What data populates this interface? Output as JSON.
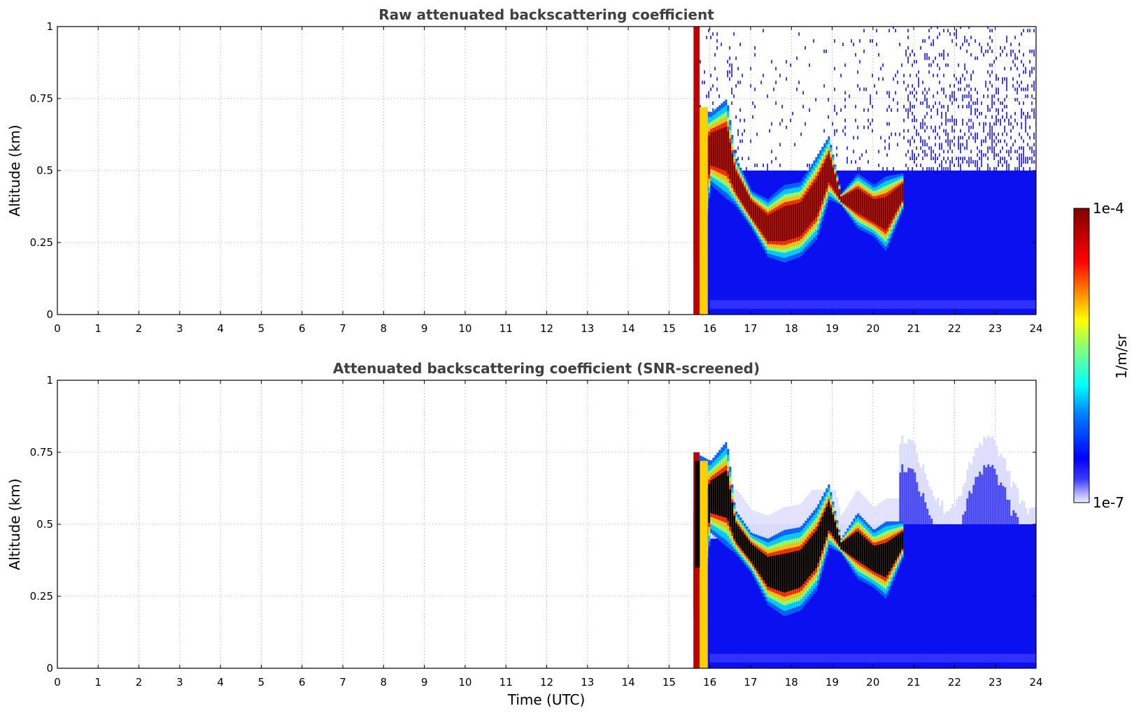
{
  "chart_data": [
    {
      "type": "heatmap",
      "title": "Raw attenuated backscattering coefficient",
      "xlabel": "",
      "ylabel": "Altitude (km)",
      "xlim": [
        0,
        24
      ],
      "ylim": [
        0,
        1
      ],
      "x_ticks": [
        "0",
        "1",
        "2",
        "3",
        "4",
        "5",
        "6",
        "7",
        "8",
        "9",
        "10",
        "11",
        "12",
        "13",
        "14",
        "15",
        "16",
        "17",
        "18",
        "19",
        "20",
        "21",
        "22",
        "23",
        "24"
      ],
      "y_ticks": [
        "0",
        "0.25",
        "0.5",
        "0.75",
        "1"
      ],
      "y_tick_values": [
        0,
        0.25,
        0.5,
        0.75,
        1
      ],
      "grid": true,
      "data_start_hour": 15.6,
      "cloud_top_profile": {
        "time": [
          15.6,
          16.0,
          16.4,
          16.6,
          17.0,
          17.4,
          17.8,
          18.2,
          18.6,
          18.9,
          19.2,
          19.6,
          20.0,
          20.3,
          20.7
        ],
        "altitude_km": [
          0.73,
          0.7,
          0.75,
          0.55,
          0.43,
          0.4,
          0.45,
          0.46,
          0.55,
          0.62,
          0.42,
          0.49,
          0.45,
          0.48,
          0.49
        ]
      },
      "cloud_base_profile": {
        "time": [
          15.6,
          16.0,
          16.4,
          16.6,
          17.0,
          17.4,
          17.8,
          18.2,
          18.6,
          18.9,
          19.2,
          19.6,
          20.0,
          20.3,
          20.7
        ],
        "altitude_km": [
          0.0,
          0.45,
          0.4,
          0.38,
          0.3,
          0.2,
          0.18,
          0.2,
          0.26,
          0.4,
          0.38,
          0.3,
          0.27,
          0.22,
          0.36
        ]
      }
    },
    {
      "type": "heatmap",
      "title": "Attenuated backscattering coefficient (SNR-screened)",
      "xlabel": "Time (UTC)",
      "ylabel": "Altitude (km)",
      "xlim": [
        0,
        24
      ],
      "ylim": [
        0,
        1
      ],
      "x_ticks": [
        "0",
        "1",
        "2",
        "3",
        "4",
        "5",
        "6",
        "7",
        "8",
        "9",
        "10",
        "11",
        "12",
        "13",
        "14",
        "15",
        "16",
        "17",
        "18",
        "19",
        "20",
        "21",
        "22",
        "23",
        "24"
      ],
      "y_ticks": [
        "0",
        "0.25",
        "0.5",
        "0.75",
        "1"
      ],
      "y_tick_values": [
        0,
        0.25,
        0.5,
        0.75,
        1
      ],
      "grid": true,
      "data_start_hour": 15.6,
      "cloud_top_profile": {
        "time": [
          15.6,
          16.0,
          16.4,
          16.6,
          17.0,
          17.4,
          17.8,
          18.2,
          18.6,
          18.9,
          19.2,
          19.6,
          20.0,
          20.3,
          20.7
        ],
        "altitude_km": [
          0.75,
          0.72,
          0.79,
          0.55,
          0.47,
          0.45,
          0.48,
          0.49,
          0.56,
          0.64,
          0.45,
          0.54,
          0.48,
          0.51,
          0.51
        ]
      },
      "cloud_base_profile": {
        "time": [
          15.6,
          16.0,
          16.4,
          16.6,
          17.0,
          17.4,
          17.8,
          18.2,
          18.6,
          18.9,
          19.2,
          19.6,
          20.0,
          20.3,
          20.7
        ],
        "altitude_km": [
          0.0,
          0.47,
          0.42,
          0.4,
          0.33,
          0.22,
          0.18,
          0.2,
          0.27,
          0.42,
          0.4,
          0.31,
          0.28,
          0.24,
          0.38
        ]
      }
    }
  ],
  "colorbar": {
    "max_label": "1e-4",
    "min_label": "1e-7",
    "unit_label": "1/m/sr",
    "colormap": "jet",
    "low_color": "#eeeeff"
  }
}
